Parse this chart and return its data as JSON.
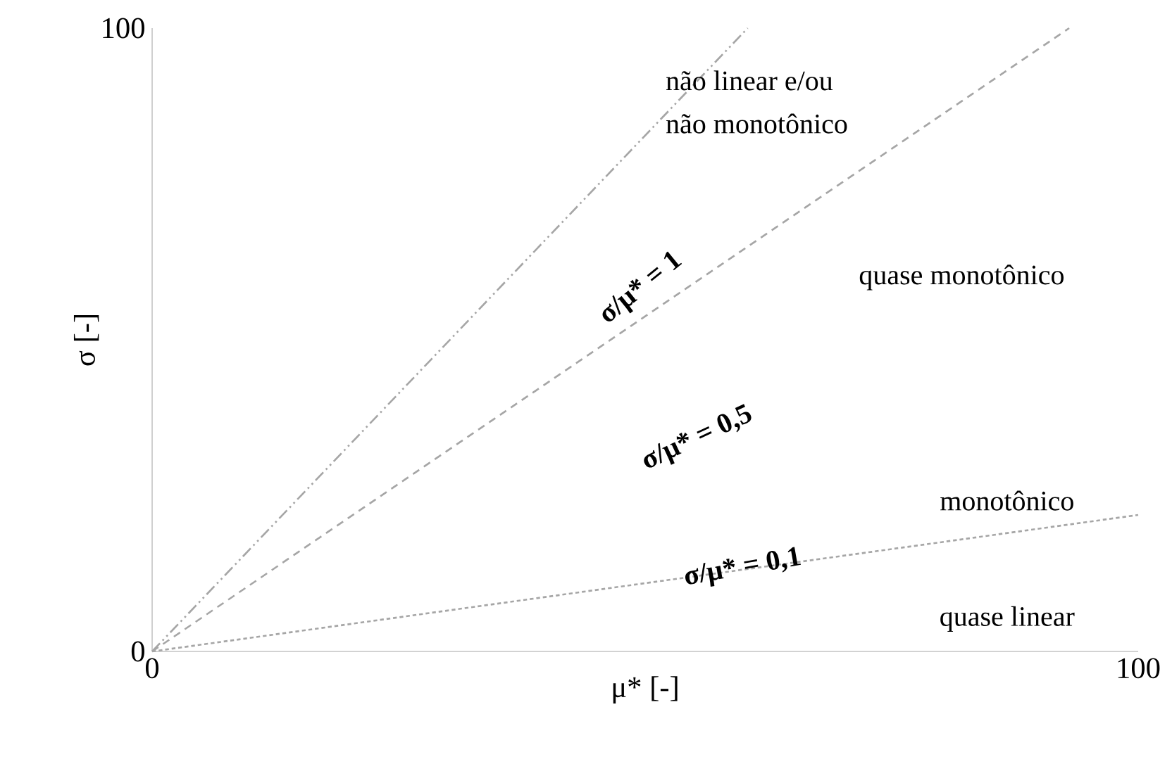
{
  "chart_data": {
    "type": "line",
    "xlabel": "μ* [-]",
    "ylabel": "σ [-]",
    "xlim": [
      0,
      100
    ],
    "ylim": [
      0,
      100
    ],
    "xticks": [
      0,
      100
    ],
    "yticks": [
      0,
      100
    ],
    "marker": "none",
    "grid": false,
    "series": [
      {
        "color": "#a6a6a6",
        "line_style": "dashdot",
        "x": [
          0,
          60.4
        ],
        "values": [
          0,
          100
        ]
      },
      {
        "color": "#a6a6a6",
        "line_style": "dashed",
        "x": [
          0,
          93
        ],
        "values": [
          0,
          100
        ]
      },
      {
        "color": "#a6a6a6",
        "line_style": "dotted",
        "x": [
          0,
          100
        ],
        "values": [
          0,
          21.9
        ]
      }
    ],
    "annotations": [
      "σ/μ* = 1",
      "σ/μ* = 0,5",
      {
        "text": "σ/μ* = 0,1",
        "x": 59.9,
        "y": 13.3
      },
      "não linear e/ou",
      "não monotônico",
      "quase monotônico",
      "monotônico",
      "quase linear"
    ]
  }
}
